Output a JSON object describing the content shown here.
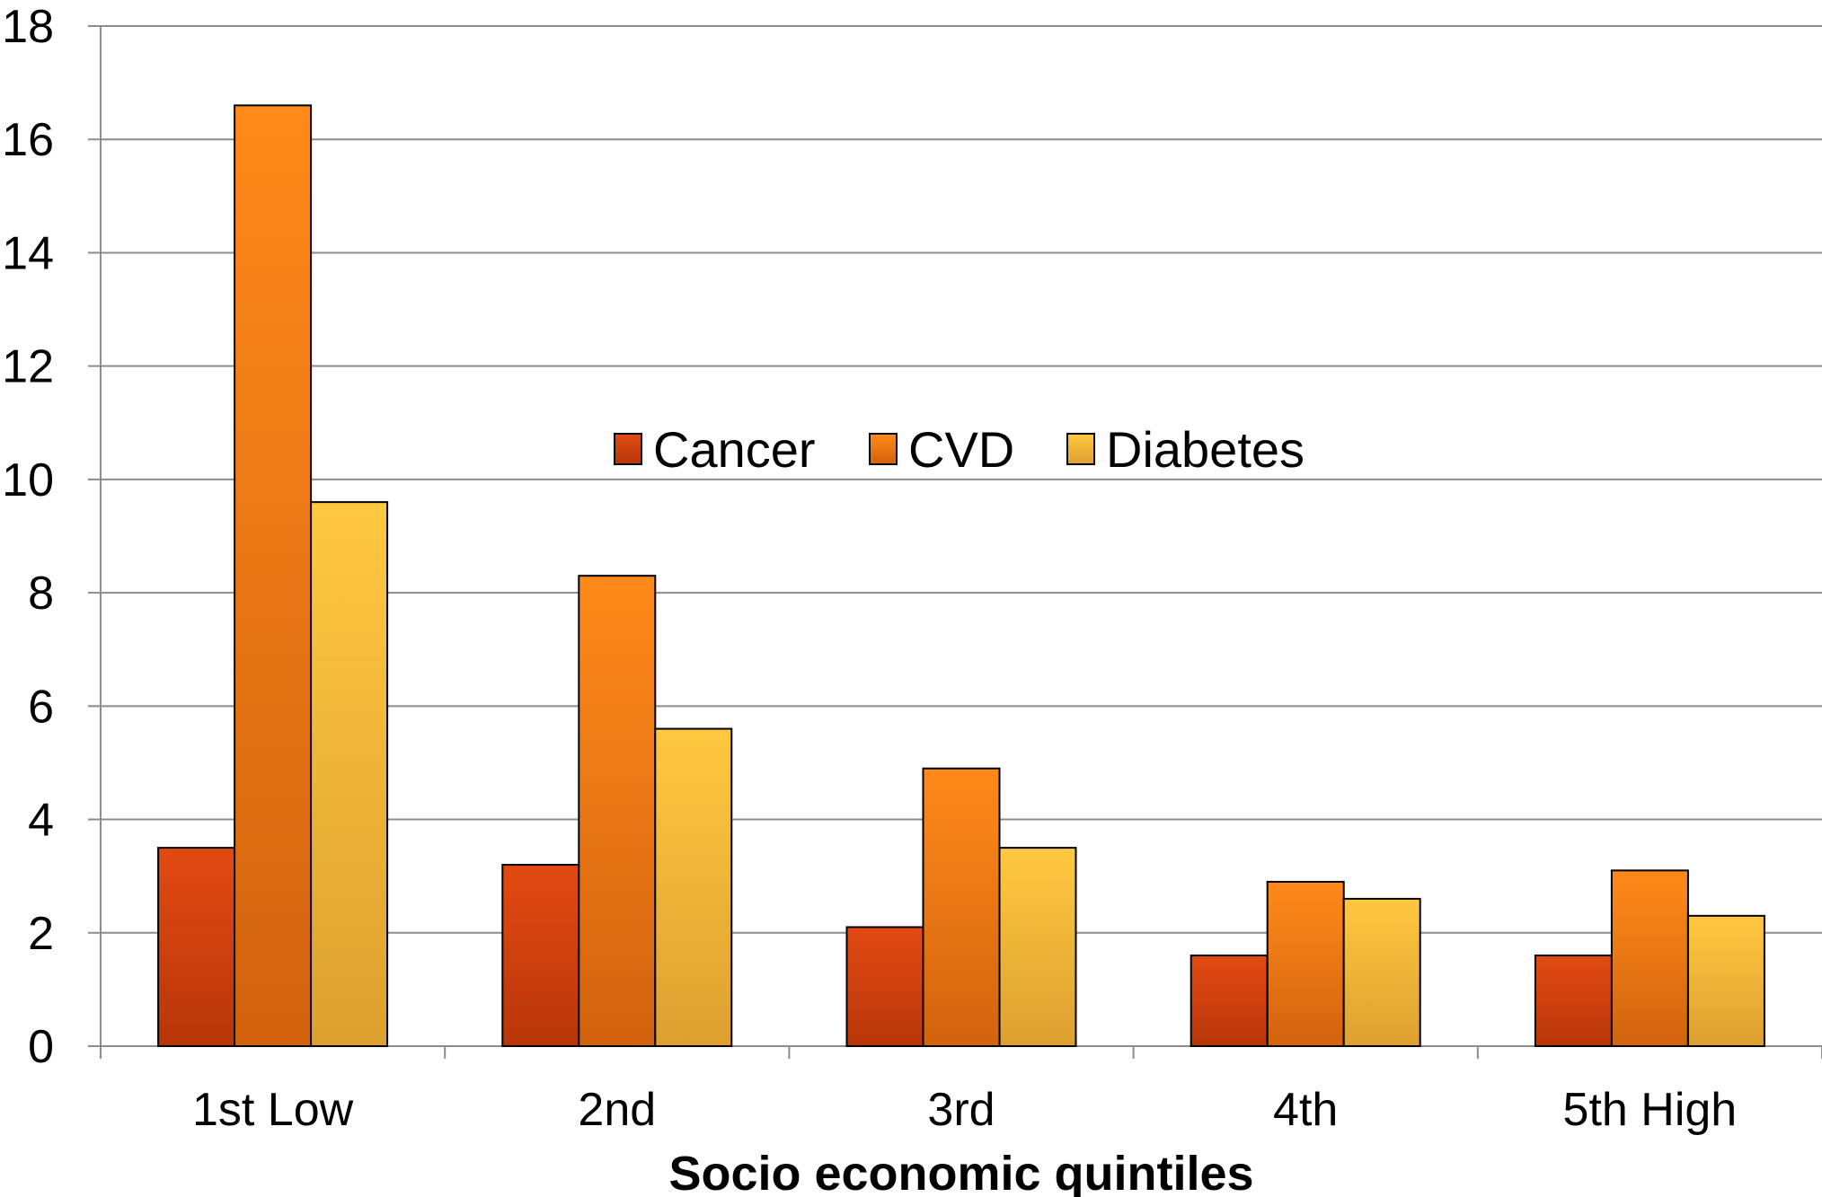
{
  "chart_data": {
    "type": "bar",
    "title": "",
    "xlabel": "Socio economic quintiles",
    "ylabel": "",
    "categories": [
      "1st Low",
      "2nd",
      "3rd",
      "4th",
      "5th High"
    ],
    "series": [
      {
        "name": "Cancer",
        "values": [
          3.5,
          3.2,
          2.1,
          1.6,
          1.6
        ],
        "color": "#E34A12",
        "color_dark": "#B8360A"
      },
      {
        "name": "CVD",
        "values": [
          16.6,
          8.3,
          4.9,
          2.9,
          3.1
        ],
        "color": "#FF8A1A",
        "color_dark": "#D2630E"
      },
      {
        "name": "Diabetes",
        "values": [
          9.6,
          5.6,
          3.5,
          2.6,
          2.3
        ],
        "color": "#FFC840",
        "color_dark": "#DDA030"
      }
    ],
    "ylim": [
      0,
      18
    ],
    "yticks": [
      0,
      2,
      4,
      6,
      8,
      10,
      12,
      14,
      16,
      18
    ],
    "grid": true,
    "legend_position": "center"
  }
}
